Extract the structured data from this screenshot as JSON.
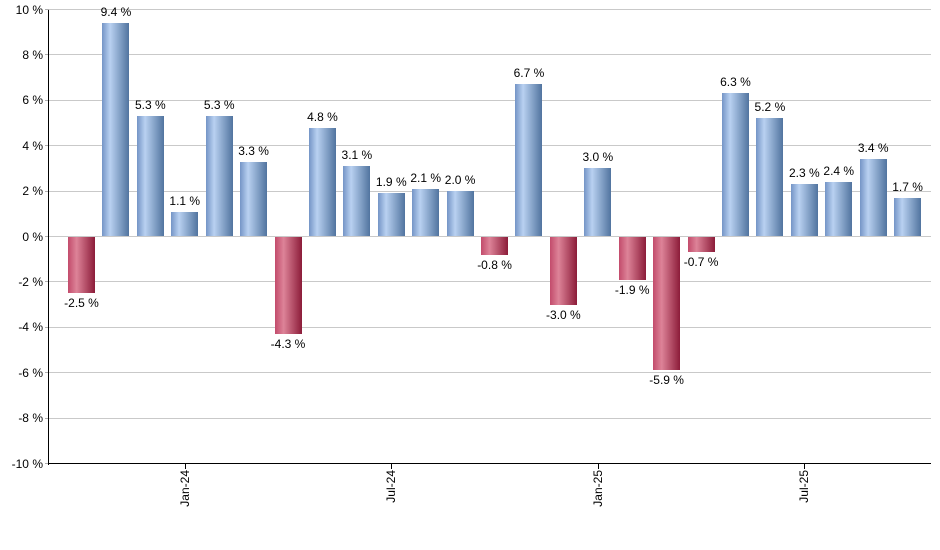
{
  "chart_data": {
    "type": "bar",
    "title": "",
    "unit": "%",
    "values": [
      -2.5,
      9.4,
      5.3,
      1.1,
      5.3,
      3.3,
      -4.3,
      4.8,
      3.1,
      1.9,
      2.1,
      2.0,
      -0.8,
      6.7,
      -3.0,
      3.0,
      -1.9,
      -5.9,
      -0.7,
      6.3,
      5.2,
      2.3,
      2.4,
      3.4,
      1.7
    ],
    "value_labels": [
      "-2.5 %",
      "9.4 %",
      "5.3 %",
      "1.1 %",
      "5.3 %",
      "3.3 %",
      "-4.3 %",
      "4.8 %",
      "3.1 %",
      "1.9 %",
      "2.1 %",
      "2.0 %",
      "-0.8 %",
      "6.7 %",
      "-3.0 %",
      "3.0 %",
      "-1.9 %",
      "-5.9 %",
      "-0.7 %",
      "6.3 %",
      "5.2 %",
      "2.3 %",
      "2.4 %",
      "3.4 %",
      "1.7 %"
    ],
    "x_ticks": [
      {
        "label": "Jan-24",
        "bar_index": 3
      },
      {
        "label": "Jul-24",
        "bar_index": 9
      },
      {
        "label": "Jan-25",
        "bar_index": 15
      },
      {
        "label": "Jul-25",
        "bar_index": 21
      }
    ],
    "y_ticks": [
      {
        "label": "10 %",
        "value": 10
      },
      {
        "label": "8 %",
        "value": 8
      },
      {
        "label": "6 %",
        "value": 6
      },
      {
        "label": "4 %",
        "value": 4
      },
      {
        "label": "2 %",
        "value": 2
      },
      {
        "label": "0 %",
        "value": 0
      },
      {
        "label": "-2 %",
        "value": -2
      },
      {
        "label": "-4 %",
        "value": -4
      },
      {
        "label": "-6 %",
        "value": -6
      },
      {
        "label": "-8 %",
        "value": -8
      },
      {
        "label": "-10 %",
        "value": -10
      }
    ],
    "ylim": [
      -10,
      10
    ],
    "grid": true,
    "legend": "none",
    "colors": {
      "positive_gradient": [
        "#7494c6",
        "#b9d1f1",
        "#51749f"
      ],
      "negative_gradient": [
        "#c24b6b",
        "#dd8398",
        "#8c1c39"
      ],
      "gridline": "#c9c9c9",
      "tick": "#adadad",
      "axis": "#000000",
      "text": "#000000",
      "background": "#ffffff"
    }
  }
}
